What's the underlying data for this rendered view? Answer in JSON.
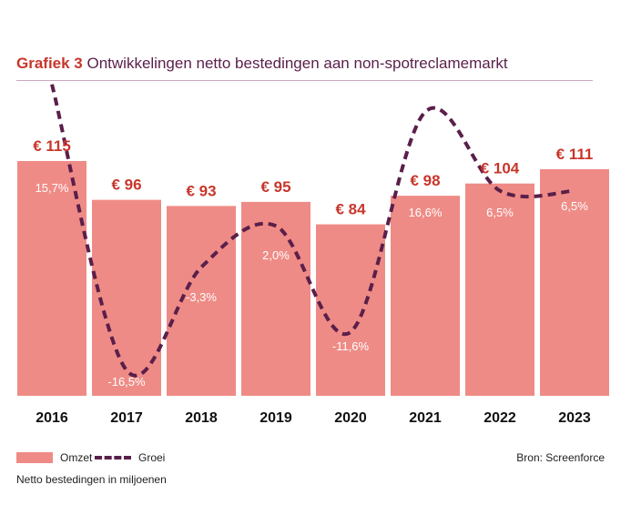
{
  "header": {
    "figure_number": "Grafiek 3",
    "title": "Ontwikkelingen netto bestedingen aan non-spotreclamemarkt"
  },
  "colors": {
    "bar": "#ef8b86",
    "line": "#5a1f4a",
    "value_label": "#c8362b",
    "title_number": "#c8362b",
    "title_text": "#5a1f4a"
  },
  "legend": {
    "bar_label": "Omzet",
    "line_label": "Groei"
  },
  "source": "Bron: Screenforce",
  "units_note": "Netto bestedingen in miljoenen",
  "chart_data": {
    "type": "bar",
    "categories": [
      "2016",
      "2017",
      "2018",
      "2019",
      "2020",
      "2021",
      "2022",
      "2023"
    ],
    "series": [
      {
        "name": "Omzet",
        "type": "bar",
        "values": [
          115,
          96,
          93,
          95,
          84,
          98,
          104,
          111
        ],
        "labels": [
          "€ 115",
          "€ 96",
          "€ 93",
          "€ 95",
          "€ 84",
          "€ 98",
          "€ 104",
          "€ 111"
        ]
      },
      {
        "name": "Groei",
        "type": "line",
        "style": "dashed",
        "values": [
          15.7,
          -16.5,
          -3.3,
          2.0,
          -11.6,
          16.6,
          6.5,
          6.5
        ],
        "labels": [
          "15,7%",
          "-16,5%",
          "-3,3%",
          "2,0%",
          "-11,6%",
          "16,6%",
          "6,5%",
          "6,5%"
        ]
      }
    ],
    "ylim": [
      0,
      115
    ],
    "grid": false,
    "legend_position": "bottom-left"
  }
}
